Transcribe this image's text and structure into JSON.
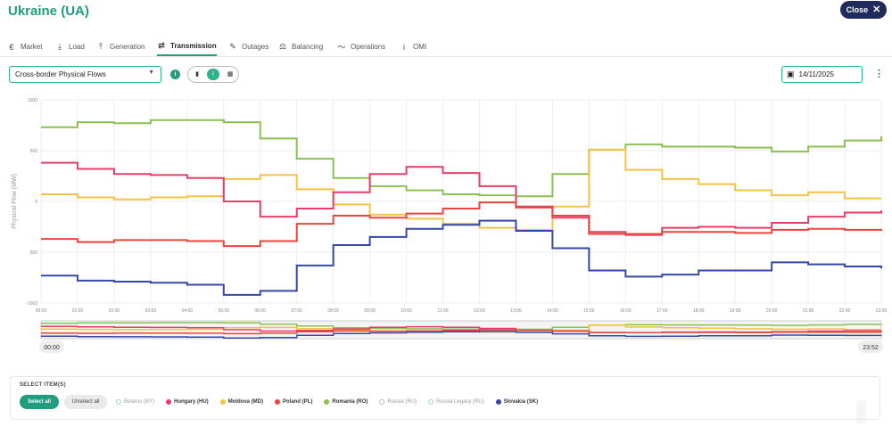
{
  "header": {
    "title": "Ukraine (UA)",
    "close_label": "Close"
  },
  "tabs": [
    {
      "label": "Market",
      "icon": "euro-icon",
      "glyph": "€"
    },
    {
      "label": "Load",
      "icon": "download-icon",
      "glyph": "⤓"
    },
    {
      "label": "Generation",
      "icon": "upload-icon",
      "glyph": "⤒"
    },
    {
      "label": "Transmission",
      "icon": "transmission-icon",
      "glyph": "⇄",
      "active": true
    },
    {
      "label": "Outages",
      "icon": "wrench-icon",
      "glyph": "✎"
    },
    {
      "label": "Balancing",
      "icon": "balance-icon",
      "glyph": "⚖"
    },
    {
      "label": "Operations",
      "icon": "trend-icon",
      "glyph": "〜"
    },
    {
      "label": "OMI",
      "icon": "info-icon",
      "glyph": "i"
    }
  ],
  "controls": {
    "dataset_select": "Cross-border Physical Flows",
    "date": "14/11/2025",
    "view_modes": [
      "table",
      "chart",
      "grid"
    ],
    "active_view": "chart"
  },
  "chart_data": {
    "type": "line",
    "step": true,
    "ylabel": "Physical Flow (MW)",
    "xlabel": "",
    "ylim": [
      -1000,
      1000
    ],
    "y_ticks": [
      "1000",
      "500",
      "0",
      "-500",
      "-1000"
    ],
    "x": [
      "00:00",
      "01:00",
      "02:00",
      "03:00",
      "04:00",
      "05:00",
      "06:00",
      "07:00",
      "08:00",
      "09:00",
      "10:00",
      "11:00",
      "12:00",
      "13:00",
      "14:00",
      "15:00",
      "16:00",
      "17:00",
      "18:00",
      "19:00",
      "20:00",
      "21:00",
      "22:00",
      "23:00"
    ],
    "grid": true,
    "series": [
      {
        "name": "Romania (RO)",
        "color": "#8cc152",
        "values": [
          730,
          780,
          770,
          800,
          800,
          780,
          620,
          420,
          230,
          150,
          110,
          70,
          60,
          50,
          270,
          510,
          560,
          540,
          540,
          530,
          490,
          540,
          600,
          640
        ]
      },
      {
        "name": "Moldova (MD)",
        "color": "#f5c242",
        "values": [
          70,
          40,
          20,
          40,
          50,
          220,
          260,
          120,
          -30,
          -130,
          -170,
          -220,
          -260,
          -280,
          -50,
          510,
          310,
          220,
          170,
          110,
          60,
          90,
          30,
          30
        ]
      },
      {
        "name": "Hungary (HU)",
        "color": "#e53e6b",
        "values": [
          380,
          320,
          270,
          260,
          230,
          0,
          -150,
          -70,
          90,
          270,
          340,
          280,
          150,
          -50,
          -160,
          -300,
          -330,
          -260,
          -250,
          -260,
          -210,
          -150,
          -110,
          -90
        ]
      },
      {
        "name": "Poland (PL)",
        "color": "#e8453c",
        "values": [
          -370,
          -400,
          -380,
          -380,
          -390,
          -440,
          -390,
          -220,
          -140,
          -160,
          -120,
          -70,
          -10,
          -60,
          -140,
          -320,
          -320,
          -300,
          -300,
          -310,
          -280,
          -270,
          -280,
          -290
        ]
      },
      {
        "name": "Slovakia (SK)",
        "color": "#3547a8",
        "values": [
          -730,
          -780,
          -790,
          -800,
          -820,
          -920,
          -880,
          -630,
          -430,
          -350,
          -270,
          -230,
          -190,
          -290,
          -460,
          -680,
          -740,
          -720,
          -680,
          -680,
          -600,
          -620,
          -640,
          -660
        ]
      }
    ]
  },
  "range": {
    "start": "00:00",
    "end": "23:52"
  },
  "legend": {
    "title": "SELECT ITEM(S)",
    "select_all": "Select all",
    "unselect_all": "Unselect all",
    "items": [
      {
        "label": "Belarus (BY)",
        "color": "#9fd9c4",
        "active": false
      },
      {
        "label": "Hungary (HU)",
        "color": "#e53e6b",
        "active": true
      },
      {
        "label": "Moldova (MD)",
        "color": "#f5c242",
        "active": true
      },
      {
        "label": "Poland (PL)",
        "color": "#e8453c",
        "active": true
      },
      {
        "label": "Romania (RO)",
        "color": "#8cc152",
        "active": true
      },
      {
        "label": "Russia (RU)",
        "color": "#bbbbbb",
        "active": false
      },
      {
        "label": "Russia Legacy (RU)",
        "color": "#9fd9c4",
        "active": false
      },
      {
        "label": "Slovakia (SK)",
        "color": "#3547a8",
        "active": true
      }
    ]
  }
}
